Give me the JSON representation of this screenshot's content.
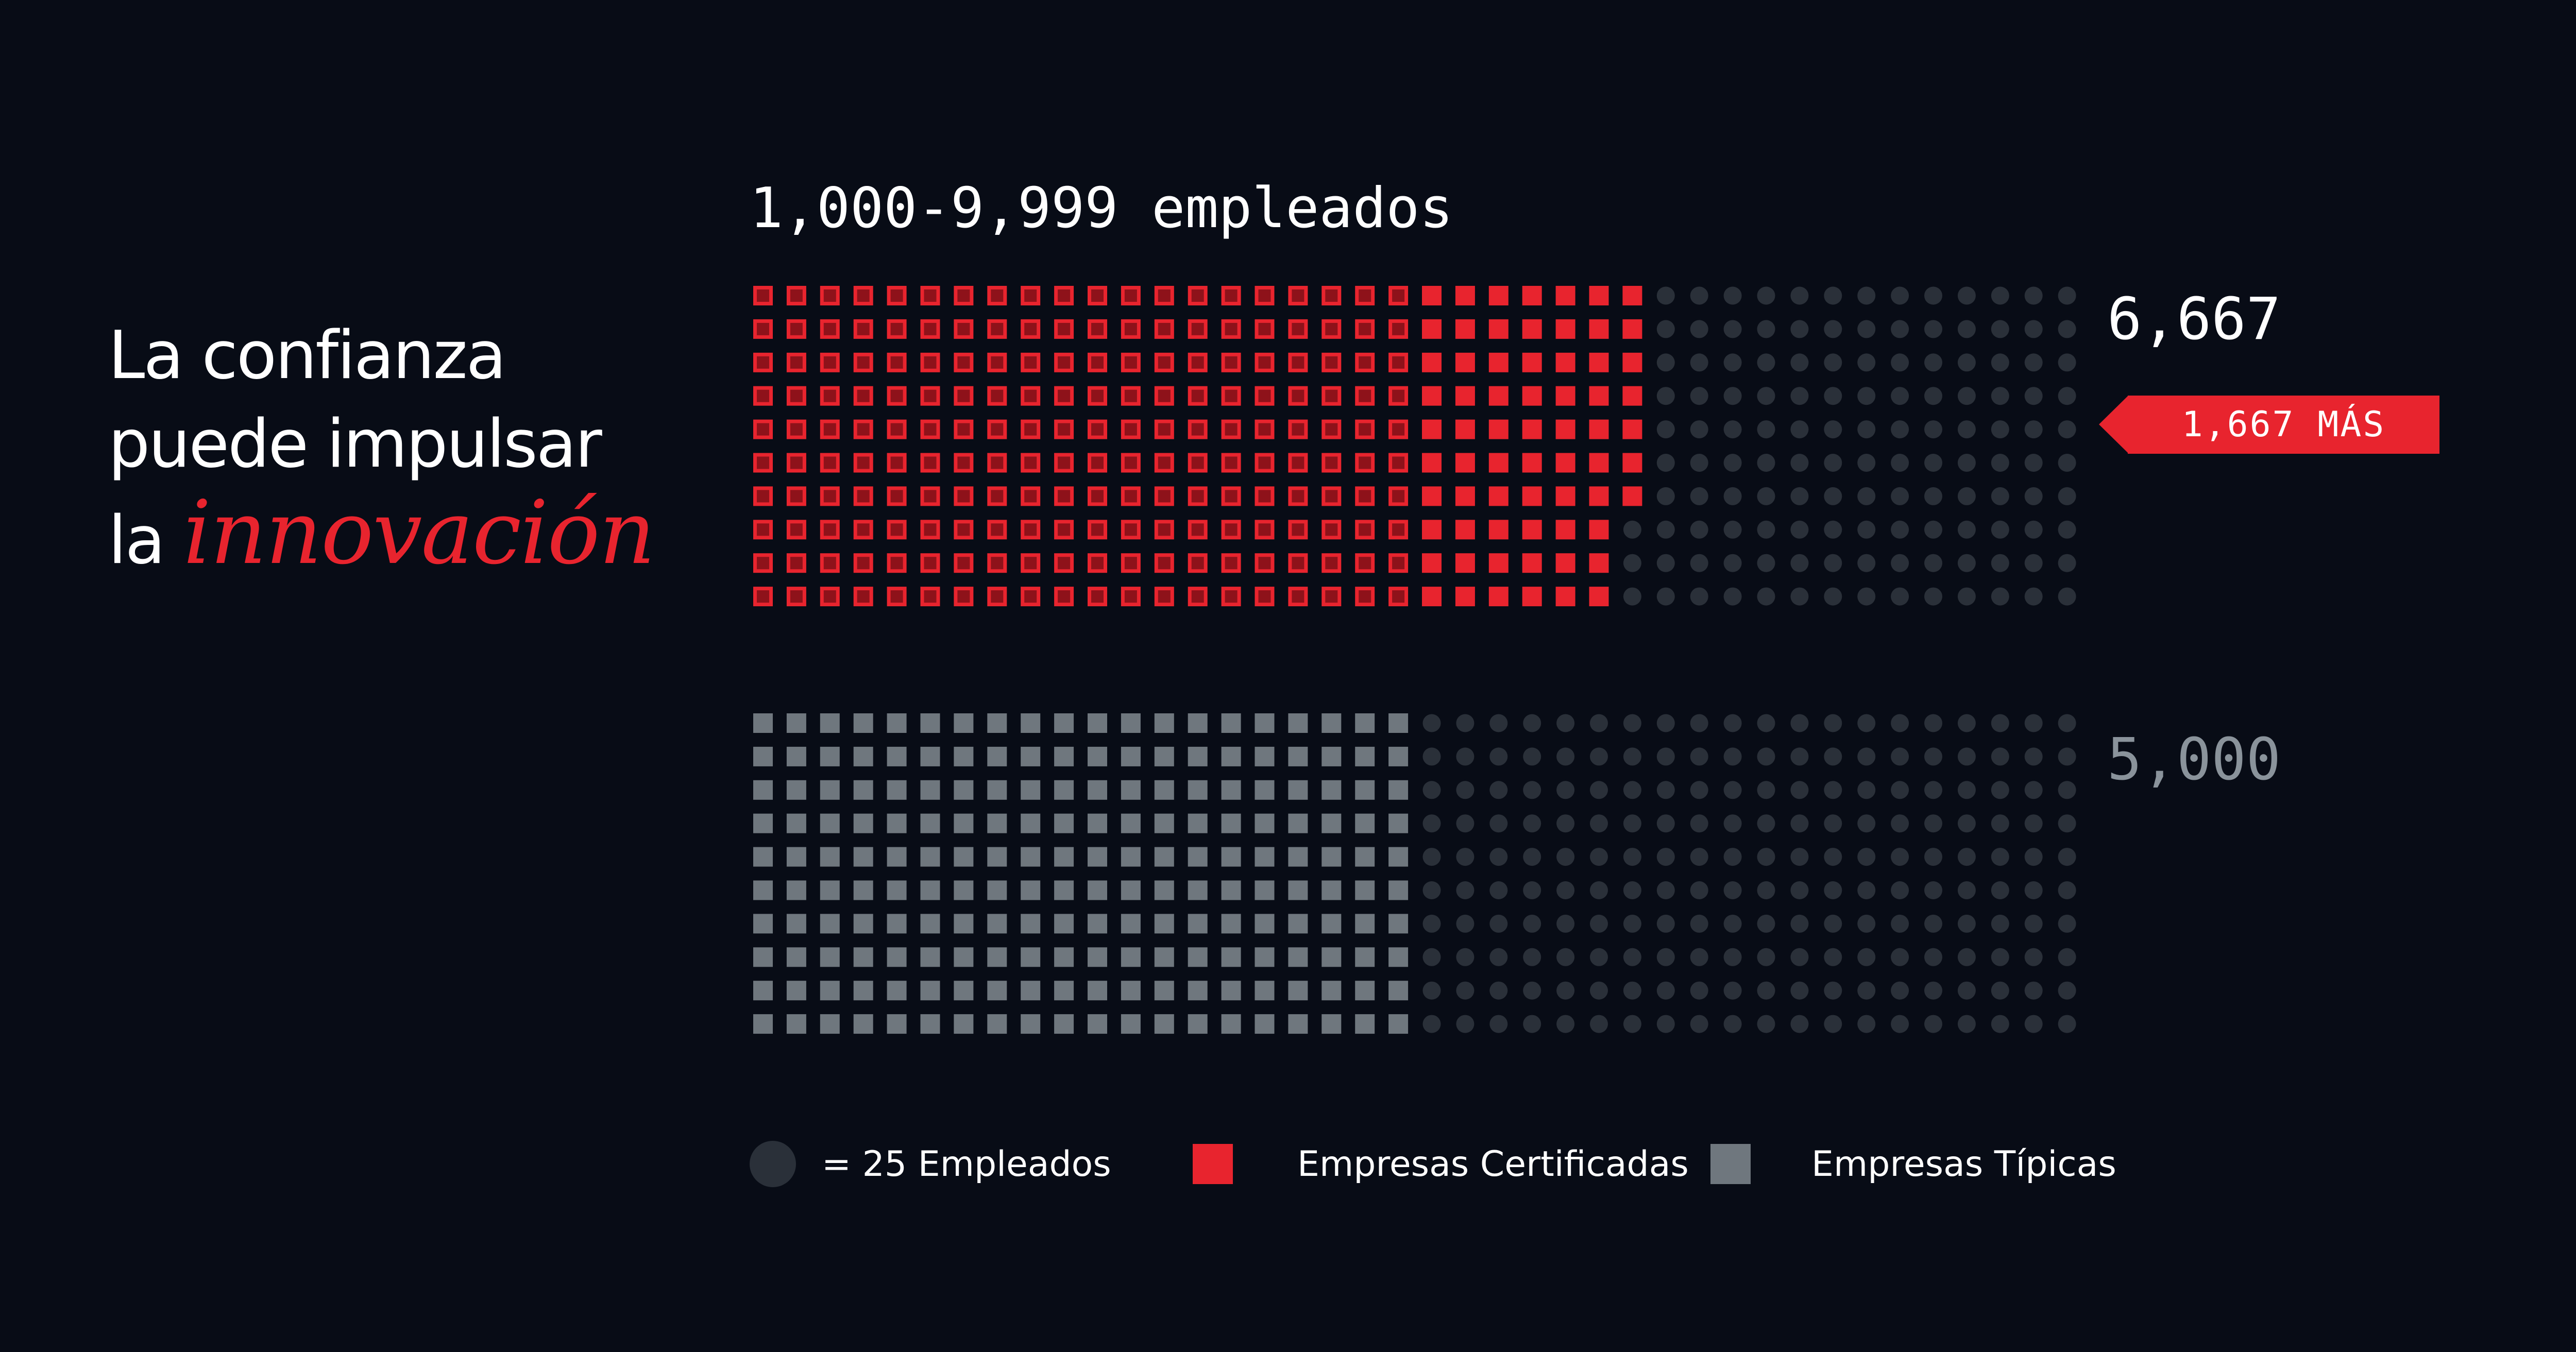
{
  "headline": {
    "line1": "La confianza",
    "line2": "puede impulsar",
    "line3_prefix": "la ",
    "line3_accent": "innovación"
  },
  "colors": {
    "background": "#080c16",
    "certified": "#e8242e",
    "certified_outline": "#c81c24",
    "typical": "#6f777e",
    "empty_dot": "#2a3039",
    "typical_label": "#8a939b"
  },
  "chart_data": {
    "type": "waffle",
    "title": "1,000-9,999 empleados",
    "unit_value": 25,
    "grid_columns": 40,
    "grid_rows": 10,
    "series": [
      {
        "name": "Empresas Certificadas",
        "value": 6667,
        "label": "6,667",
        "color": "#e8242e"
      },
      {
        "name": "Empresas Típicas",
        "value": 5000,
        "label": "5,000",
        "color": "#6f777e"
      }
    ],
    "difference_label": "1,667 MÁS",
    "legend": {
      "unit": "= 25 Empleados",
      "certified": "Empresas Certificadas",
      "typical": "Empresas Típicas"
    }
  }
}
